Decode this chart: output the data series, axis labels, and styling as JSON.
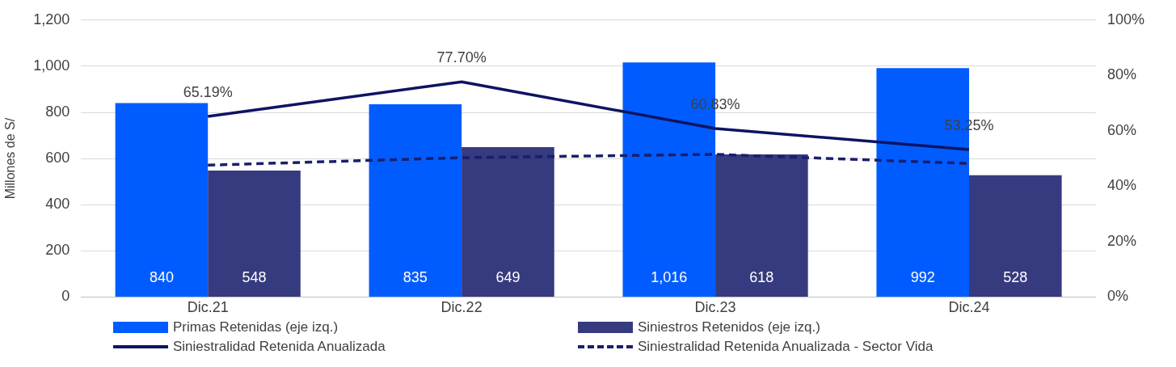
{
  "chart_data": {
    "type": "bar",
    "ylabel": "Millones de S/",
    "categories": [
      "Dic.21",
      "Dic.22",
      "Dic.23",
      "Dic.24"
    ],
    "series": [
      {
        "name": "Primas Retenidas (eje izq.)",
        "color": "#005cff",
        "values": [
          840,
          835,
          1016,
          992
        ],
        "value_labels": [
          "840",
          "835",
          "1,016",
          "992"
        ]
      },
      {
        "name": "Siniestros Retenidos (eje izq.)",
        "color": "#363a7e",
        "values": [
          548,
          649,
          618,
          528
        ],
        "value_labels": [
          "548",
          "649",
          "618",
          "528"
        ]
      },
      {
        "name": "Siniestralidad Retenida Anualizada",
        "type": "line",
        "axis": "y2",
        "color": "#0d1463",
        "line_style": "solid",
        "values": [
          65.19,
          77.7,
          60.83,
          53.25
        ],
        "value_labels": [
          "65.19%",
          "77.70%",
          "60.83%",
          "53.25%"
        ]
      },
      {
        "name": "Siniestralidad Retenida Anualizada - Sector Vida",
        "type": "line",
        "axis": "y2",
        "color": "#1a1f6b",
        "line_style": "dashed",
        "values": [
          47.6,
          50.3,
          51.5,
          48.2
        ]
      }
    ],
    "ylim": [
      0,
      1200
    ],
    "yticks": [
      0,
      200,
      400,
      600,
      800,
      {
        "value": 1000,
        "label": "1,000"
      },
      {
        "value": 1200,
        "label": "1,200"
      }
    ],
    "y2lim": [
      0,
      100
    ],
    "y2ticks": [
      {
        "value": 0,
        "label": "0%"
      },
      {
        "value": 20,
        "label": "20%"
      },
      {
        "value": 40,
        "label": "40%"
      },
      {
        "value": 60,
        "label": "60%"
      },
      {
        "value": 80,
        "label": "80%"
      },
      {
        "value": 100,
        "label": "100%"
      }
    ],
    "grid": "y",
    "legend": "bottom",
    "marker": "none"
  }
}
